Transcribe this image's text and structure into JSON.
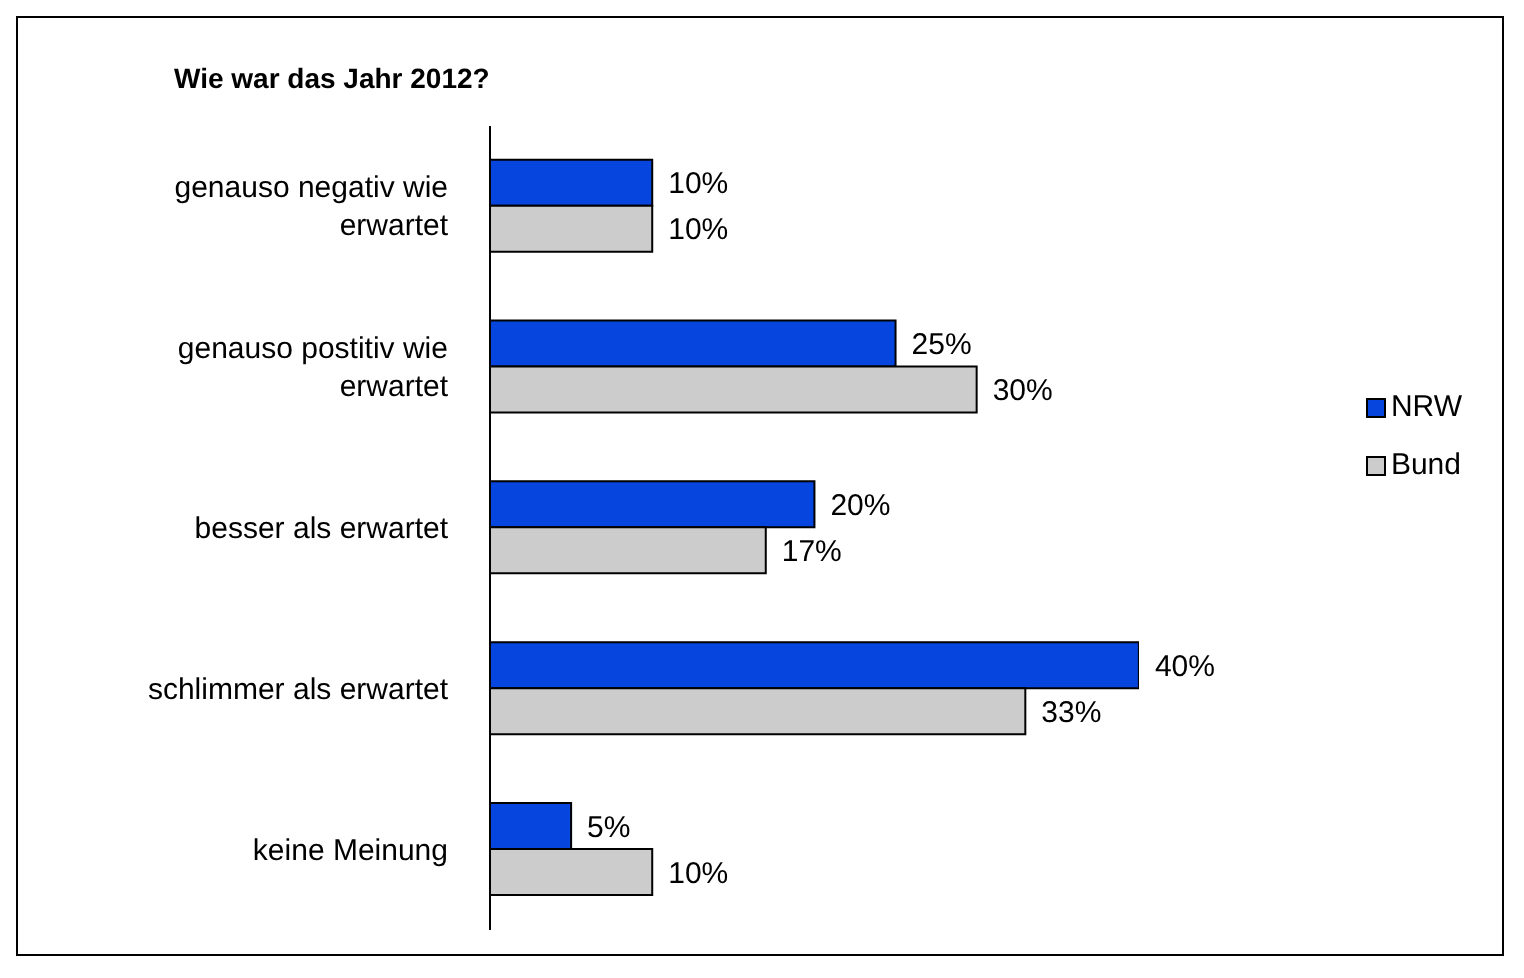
{
  "chart_data": {
    "type": "bar",
    "orientation": "horizontal",
    "title": "Wie war das Jahr 2012?",
    "categories": [
      "genauso negativ wie erwartet",
      "genauso postitiv wie erwartet",
      "besser als erwartet",
      "schlimmer als erwartet",
      "keine Meinung"
    ],
    "series": [
      {
        "name": "NRW",
        "color": "#0645de",
        "values": [
          10,
          25,
          20,
          40,
          5
        ],
        "value_labels": [
          "10%",
          "25%",
          "20%",
          "40%",
          "5%"
        ]
      },
      {
        "name": "Bund",
        "color": "#cccccc",
        "values": [
          10,
          30,
          17,
          33,
          10
        ],
        "value_labels": [
          "10%",
          "30%",
          "17%",
          "33%",
          "10%"
        ]
      }
    ],
    "legend": "right"
  }
}
